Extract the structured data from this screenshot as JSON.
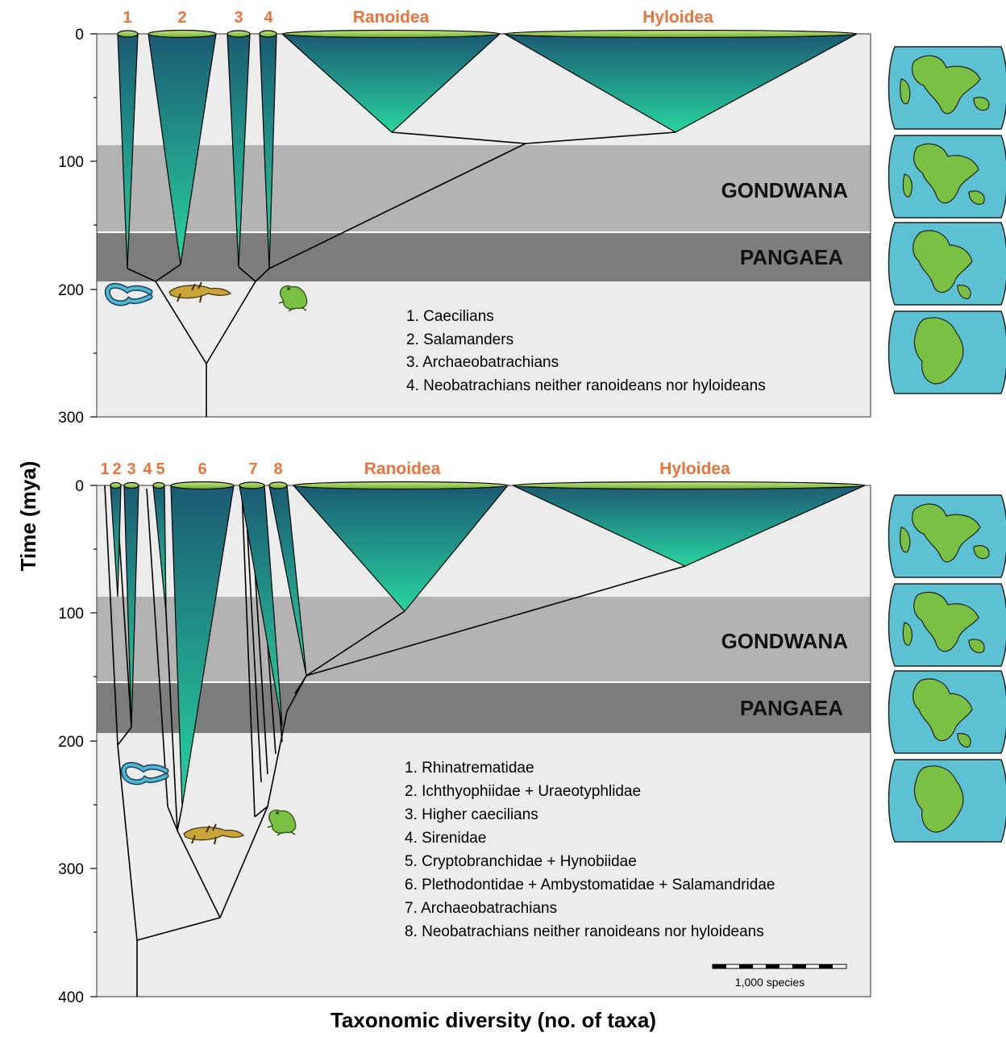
{
  "axis": {
    "y_title": "Time (mya)",
    "x_title": "Taxonomic diversity (no. of taxa)"
  },
  "colors": {
    "background": "#ececec",
    "gondwana_band": "#b3b3b3",
    "pangaea_band": "#7d7d7d",
    "clade_top": "#1b5a73",
    "clade_bottom": "#28d49f",
    "clade_cap": "#8dc63f",
    "clade_label": "#e8743b",
    "ocean": "#5bc1d3",
    "land": "#7ac143"
  },
  "top_panel": {
    "y_ticks": [
      "0",
      "100",
      "200",
      "300"
    ],
    "clade_labels": [
      "1",
      "2",
      "3",
      "4",
      "Ranoidea",
      "Hyloidea"
    ],
    "bands": {
      "gondwana": "GONDWANA",
      "pangaea": "PANGAEA"
    },
    "legend": [
      "1. Caecilians",
      "2. Salamanders",
      "3. Archaeobatrachians",
      "4. Neobatrachians neither ranoideans nor hyloideans"
    ]
  },
  "bottom_panel": {
    "y_ticks": [
      "0",
      "100",
      "200",
      "300",
      "400"
    ],
    "clade_labels": [
      "1",
      "2",
      "3",
      "4",
      "5",
      "6",
      "7",
      "8",
      "Ranoidea",
      "Hyloidea"
    ],
    "bands": {
      "gondwana": "GONDWANA",
      "pangaea": "PANGAEA"
    },
    "legend": [
      "1. Rhinatrematidae",
      "2. Ichthyophiidae + Uraeotyphlidae",
      "3. Higher caecilians",
      "4. Sirenidae",
      "5. Cryptobranchidae + Hynobiidae",
      "6. Plethodontidae + Ambystomatidae + Salamandridae",
      "7. Archaeobatrachians",
      "8. Neobatrachians neither ranoideans nor hyloideans"
    ],
    "scale_bar": "1,000 species"
  },
  "icons": [
    "caecilian-icon",
    "salamander-icon",
    "frog-icon",
    "globe-map-icon"
  ]
}
